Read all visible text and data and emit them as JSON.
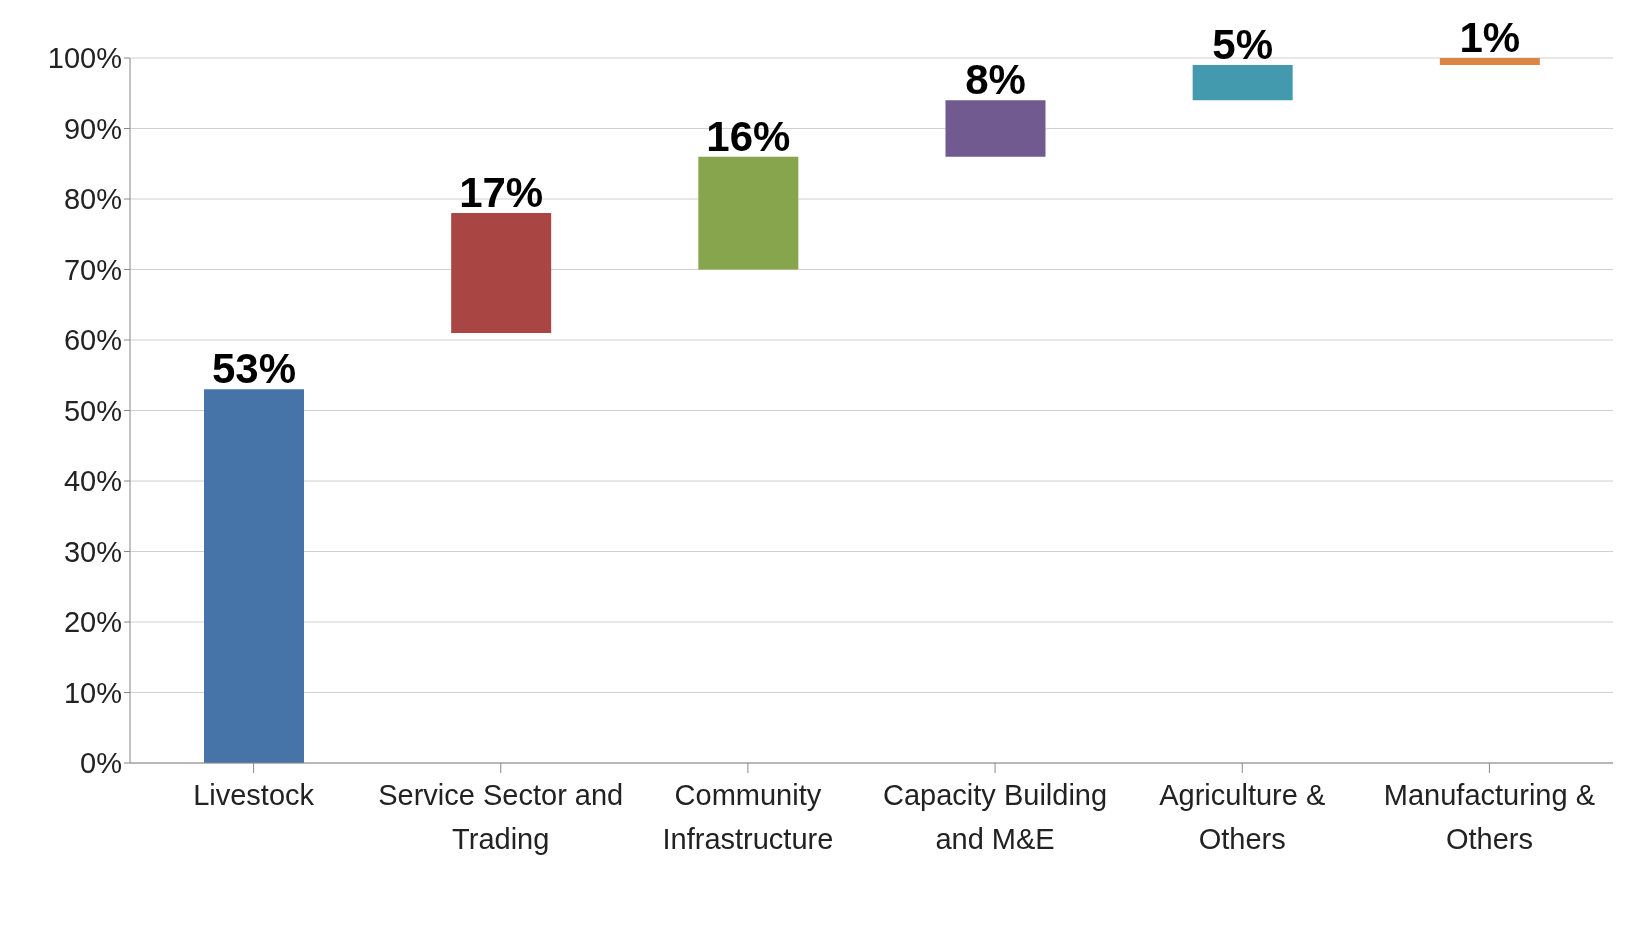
{
  "chart_data": {
    "type": "bar",
    "categories": [
      "Livestock",
      "Service Sector and Trading",
      "Community Infrastructure",
      "Capacity Building and M&E",
      "Agriculture & Others",
      "Manufacturing & Others"
    ],
    "values": [
      53,
      17,
      16,
      8,
      5,
      1
    ],
    "base": [
      0,
      61,
      70,
      86,
      94,
      99
    ],
    "colors": [
      "#4674a8",
      "#a94644",
      "#87a54c",
      "#705a8f",
      "#4399ae",
      "#db8443"
    ],
    "value_labels": [
      "53%",
      "17%",
      "16%",
      "8%",
      "5%",
      "1%"
    ],
    "ylim": [
      0,
      100
    ],
    "yticks": [
      {
        "value": 0,
        "label": "0%"
      },
      {
        "value": 10,
        "label": "10%"
      },
      {
        "value": 20,
        "label": "20%"
      },
      {
        "value": 30,
        "label": "30%"
      },
      {
        "value": 40,
        "label": "40%"
      },
      {
        "value": 50,
        "label": "50%"
      },
      {
        "value": 60,
        "label": "60%"
      },
      {
        "value": 70,
        "label": "70%"
      },
      {
        "value": 80,
        "label": "80%"
      },
      {
        "value": 90,
        "label": "90%"
      },
      {
        "value": 100,
        "label": "100%"
      }
    ],
    "grid": "y",
    "legend": false
  }
}
